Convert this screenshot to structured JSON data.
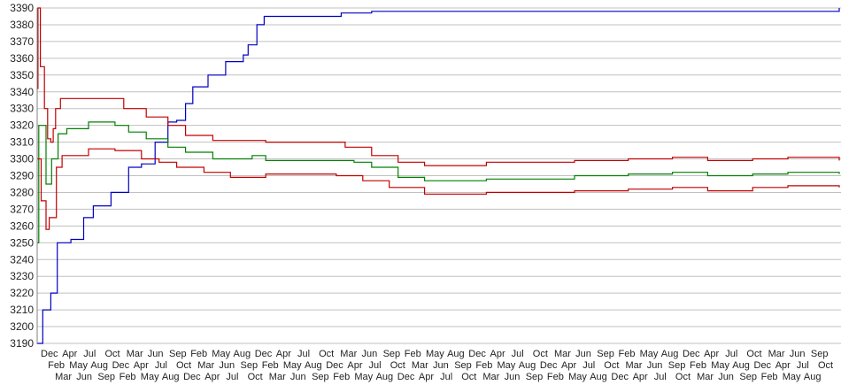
{
  "chart_data": {
    "type": "line",
    "title": "",
    "xlabel": "",
    "ylabel": "",
    "ylim": [
      3190,
      3390
    ],
    "yticks": [
      3190,
      3200,
      3210,
      3220,
      3230,
      3240,
      3250,
      3260,
      3270,
      3280,
      3290,
      3300,
      3310,
      3320,
      3330,
      3340,
      3350,
      3360,
      3370,
      3380,
      3390
    ],
    "xlim": [
      0,
      100
    ],
    "grid": "horizontal",
    "x_tick_labels": [
      "Dec",
      "Feb",
      "Mar",
      "Apr",
      "May",
      "Jun",
      "Jul",
      "Aug",
      "Sep",
      "Oct",
      "Dec",
      "Feb",
      "Mar",
      "Apr",
      "May",
      "Jun",
      "Jul",
      "Aug",
      "Sep",
      "Oct",
      "Dec",
      "Feb",
      "Mar",
      "Apr",
      "May",
      "Jun",
      "Jul",
      "Aug",
      "Sep",
      "Oct",
      "Dec",
      "Feb",
      "Mar",
      "Apr",
      "May",
      "Jun",
      "Jul",
      "Aug",
      "Sep",
      "Oct",
      "Dec",
      "Feb",
      "Mar",
      "Apr",
      "May",
      "Jun",
      "Jul",
      "Aug",
      "Sep",
      "Oct",
      "Dec",
      "Feb",
      "Mar",
      "Apr",
      "May",
      "Jun",
      "Jul",
      "Aug",
      "Sep",
      "Oct",
      "Dec",
      "Feb",
      "Mar",
      "Apr",
      "May",
      "Jun",
      "Jul",
      "Aug",
      "Sep",
      "Oct",
      "Dec",
      "Feb",
      "Mar",
      "Apr",
      "May",
      "Jun",
      "Jul",
      "Aug",
      "Sep",
      "Oct",
      "Dec",
      "Feb",
      "Mar",
      "Apr",
      "May",
      "Jun",
      "Jul",
      "Aug",
      "Sep",
      "Oct",
      "Dec",
      "Feb",
      "Mar",
      "Apr",
      "May",
      "Jun",
      "Jul",
      "Aug",
      "Sep",
      "Oct",
      "Dec",
      "Feb",
      "Mar",
      "Apr",
      "May",
      "Jun",
      "Jul",
      "Aug",
      "Sep",
      "Oct"
    ],
    "series": [
      {
        "color": "#0000c0",
        "points": [
          [
            0,
            3190
          ],
          [
            0.7,
            3210
          ],
          [
            1.7,
            3220
          ],
          [
            2.5,
            3250
          ],
          [
            4.2,
            3252
          ],
          [
            5.8,
            3265
          ],
          [
            7,
            3272
          ],
          [
            9.2,
            3280
          ],
          [
            11.4,
            3295
          ],
          [
            13,
            3297
          ],
          [
            14.7,
            3310
          ],
          [
            16.3,
            3322
          ],
          [
            17.4,
            3323
          ],
          [
            18.5,
            3333
          ],
          [
            19.4,
            3343
          ],
          [
            21.3,
            3350
          ],
          [
            23.5,
            3358
          ],
          [
            25.7,
            3362
          ],
          [
            26.3,
            3368
          ],
          [
            27.4,
            3380
          ],
          [
            28.3,
            3385
          ],
          [
            37.3,
            3385
          ],
          [
            37.9,
            3387
          ],
          [
            41.7,
            3388
          ],
          [
            99.1,
            3388
          ],
          [
            100,
            3390
          ]
        ]
      },
      {
        "color": "#008000",
        "points": [
          [
            0,
            3250
          ],
          [
            0.2,
            3320
          ],
          [
            1.1,
            3285
          ],
          [
            1.8,
            3300
          ],
          [
            2.6,
            3315
          ],
          [
            3.7,
            3318
          ],
          [
            6.4,
            3322
          ],
          [
            9.7,
            3320
          ],
          [
            11.4,
            3316
          ],
          [
            13.6,
            3312
          ],
          [
            16.3,
            3307
          ],
          [
            18.5,
            3304
          ],
          [
            21.9,
            3300
          ],
          [
            26.8,
            3302
          ],
          [
            28.5,
            3299
          ],
          [
            39.5,
            3298
          ],
          [
            41.7,
            3295
          ],
          [
            45,
            3289
          ],
          [
            48.3,
            3287
          ],
          [
            56,
            3288
          ],
          [
            67,
            3290
          ],
          [
            73.7,
            3291
          ],
          [
            79.2,
            3292
          ],
          [
            83.6,
            3290
          ],
          [
            89.2,
            3291
          ],
          [
            93.6,
            3292
          ],
          [
            100,
            3291
          ]
        ]
      },
      {
        "color": "#c00000",
        "points": [
          [
            0,
            3342
          ],
          [
            0.1,
            3390
          ],
          [
            0.4,
            3355
          ],
          [
            0.9,
            3330
          ],
          [
            1.3,
            3312
          ],
          [
            1.7,
            3310
          ],
          [
            2,
            3318
          ],
          [
            2.3,
            3330
          ],
          [
            2.9,
            3336
          ],
          [
            7.5,
            3336
          ],
          [
            10.8,
            3330
          ],
          [
            13.6,
            3325
          ],
          [
            16.3,
            3320
          ],
          [
            18.5,
            3314
          ],
          [
            21.9,
            3311
          ],
          [
            28.5,
            3310
          ],
          [
            38.4,
            3307
          ],
          [
            41.7,
            3302
          ],
          [
            45,
            3298
          ],
          [
            48.3,
            3296
          ],
          [
            56,
            3298
          ],
          [
            67,
            3299
          ],
          [
            73.7,
            3300
          ],
          [
            79.2,
            3301
          ],
          [
            83.6,
            3299
          ],
          [
            89.2,
            3300
          ],
          [
            93.6,
            3301
          ],
          [
            100,
            3299
          ]
        ]
      },
      {
        "color": "#c00000",
        "points": [
          [
            0,
            3300
          ],
          [
            0.5,
            3275
          ],
          [
            1.1,
            3258
          ],
          [
            1.5,
            3265
          ],
          [
            2.4,
            3295
          ],
          [
            3.1,
            3302
          ],
          [
            6.4,
            3306
          ],
          [
            9.7,
            3305
          ],
          [
            13,
            3300
          ],
          [
            15.2,
            3298
          ],
          [
            17.4,
            3295
          ],
          [
            20.8,
            3292
          ],
          [
            24.1,
            3289
          ],
          [
            28.5,
            3291
          ],
          [
            37.3,
            3290
          ],
          [
            40.6,
            3287
          ],
          [
            43.9,
            3283
          ],
          [
            48.3,
            3279
          ],
          [
            56,
            3280
          ],
          [
            67,
            3281
          ],
          [
            73.7,
            3282
          ],
          [
            79.2,
            3283
          ],
          [
            83.6,
            3281
          ],
          [
            89.2,
            3283
          ],
          [
            93.6,
            3284
          ],
          [
            100,
            3283
          ]
        ]
      }
    ]
  }
}
